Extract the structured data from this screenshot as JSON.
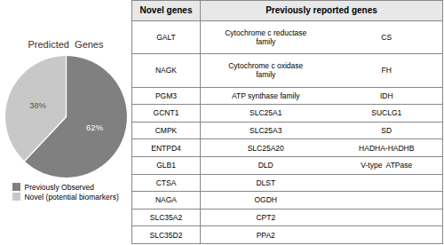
{
  "chart_data": [
    {
      "type": "pie",
      "title": "Predicted  Genes",
      "categories": [
        "Previously Observed",
        "Novel (potential biomarkers)"
      ],
      "values": [
        62,
        38
      ],
      "value_labels": [
        "62%",
        "38%"
      ],
      "data_labels": true,
      "colors": [
        "#808080",
        "#c8c8c8"
      ],
      "legend": "bottom"
    },
    {
      "type": "table",
      "column_headers": [
        "Novel genes",
        "Previously reported genes"
      ],
      "rows": [
        [
          "GALT",
          "Cytochrome c reductase\nfamily",
          "CS"
        ],
        [
          "NAGK",
          "Cytochrome c oxidase\nfamily",
          "FH"
        ],
        [
          "PGM3",
          "ATP synthase family",
          "IDH"
        ],
        [
          "GCNT1",
          "SLC25A1",
          "SUCLG1"
        ],
        [
          "CMPK",
          "SLC25A3",
          "SD"
        ],
        [
          "ENTPD4",
          "SLC25A20",
          "HADHA-HADHB"
        ],
        [
          "GLB1",
          "DLD",
          "V-type  ATPase"
        ],
        [
          "CTSA",
          "DLST",
          null
        ],
        [
          "NAGA",
          "OGDH",
          null
        ],
        [
          "SLC35A2",
          "CPT2",
          null
        ],
        [
          "SLC35D2",
          "PPA2",
          null
        ]
      ]
    }
  ]
}
